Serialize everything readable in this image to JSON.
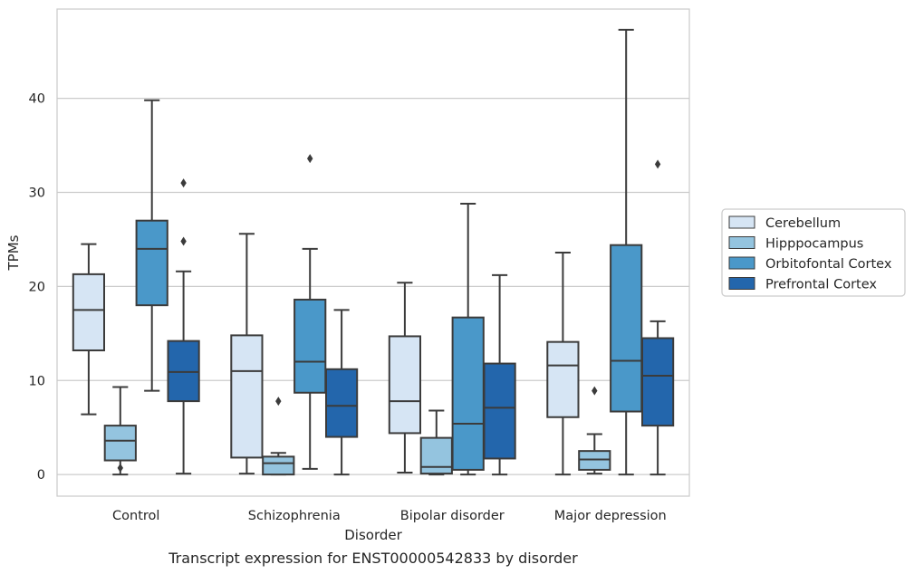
{
  "chart_data": {
    "type": "box",
    "title": "",
    "caption": "Transcript expression for ENST00000542833 by disorder",
    "xlabel": "Disorder",
    "ylabel": "TPMs",
    "ylim": [
      -2.3,
      49.5
    ],
    "yticks": [
      0,
      10,
      20,
      30,
      40
    ],
    "grid": "horizontal",
    "legend_position": "right",
    "categories": [
      "Control",
      "Schizophrenia",
      "Bipolar disorder",
      "Major depression"
    ],
    "series": [
      {
        "name": "Cerebellum",
        "color": "#d6e5f4",
        "boxes": [
          {
            "whislo": 6.4,
            "q1": 13.2,
            "med": 17.5,
            "q3": 21.3,
            "whishi": 24.5,
            "fliers": []
          },
          {
            "whislo": 0.1,
            "q1": 1.8,
            "med": 11.0,
            "q3": 14.8,
            "whishi": 25.6,
            "fliers": []
          },
          {
            "whislo": 0.2,
            "q1": 4.4,
            "med": 7.8,
            "q3": 14.7,
            "whishi": 20.4,
            "fliers": []
          },
          {
            "whislo": 0.0,
            "q1": 6.1,
            "med": 11.6,
            "q3": 14.1,
            "whishi": 23.6,
            "fliers": []
          }
        ]
      },
      {
        "name": "Hipppocampus",
        "color": "#94c4df",
        "boxes": [
          {
            "whislo": 0.0,
            "q1": 1.5,
            "med": 3.6,
            "q3": 5.2,
            "whishi": 9.3,
            "fliers": [
              0.7
            ]
          },
          {
            "whislo": 0.0,
            "q1": 0.0,
            "med": 1.2,
            "q3": 1.9,
            "whishi": 2.3,
            "fliers": [
              7.8
            ]
          },
          {
            "whislo": 0.0,
            "q1": 0.1,
            "med": 0.8,
            "q3": 3.9,
            "whishi": 6.8,
            "fliers": []
          },
          {
            "whislo": 0.1,
            "q1": 0.5,
            "med": 1.6,
            "q3": 2.5,
            "whishi": 4.3,
            "fliers": [
              8.9
            ]
          }
        ]
      },
      {
        "name": "Orbitofontal Cortex",
        "color": "#4a98c9",
        "boxes": [
          {
            "whislo": 8.9,
            "q1": 18.0,
            "med": 24.0,
            "q3": 27.0,
            "whishi": 39.8,
            "fliers": []
          },
          {
            "whislo": 0.6,
            "q1": 8.7,
            "med": 12.0,
            "q3": 18.6,
            "whishi": 24.0,
            "fliers": [
              33.6
            ]
          },
          {
            "whislo": 0.0,
            "q1": 0.5,
            "med": 5.4,
            "q3": 16.7,
            "whishi": 28.8,
            "fliers": []
          },
          {
            "whislo": 0.0,
            "q1": 6.7,
            "med": 12.1,
            "q3": 24.4,
            "whishi": 47.3,
            "fliers": []
          }
        ]
      },
      {
        "name": "Prefrontal Cortex",
        "color": "#2366ac",
        "boxes": [
          {
            "whislo": 0.1,
            "q1": 7.8,
            "med": 10.9,
            "q3": 14.2,
            "whishi": 21.6,
            "fliers": [
              24.8,
              31.0
            ]
          },
          {
            "whislo": 0.0,
            "q1": 4.0,
            "med": 7.3,
            "q3": 11.2,
            "whishi": 17.5,
            "fliers": []
          },
          {
            "whislo": 0.0,
            "q1": 1.7,
            "med": 7.1,
            "q3": 11.8,
            "whishi": 21.2,
            "fliers": []
          },
          {
            "whislo": 0.0,
            "q1": 5.2,
            "med": 10.5,
            "q3": 14.5,
            "whishi": 16.3,
            "fliers": [
              33.0
            ]
          }
        ]
      }
    ]
  }
}
